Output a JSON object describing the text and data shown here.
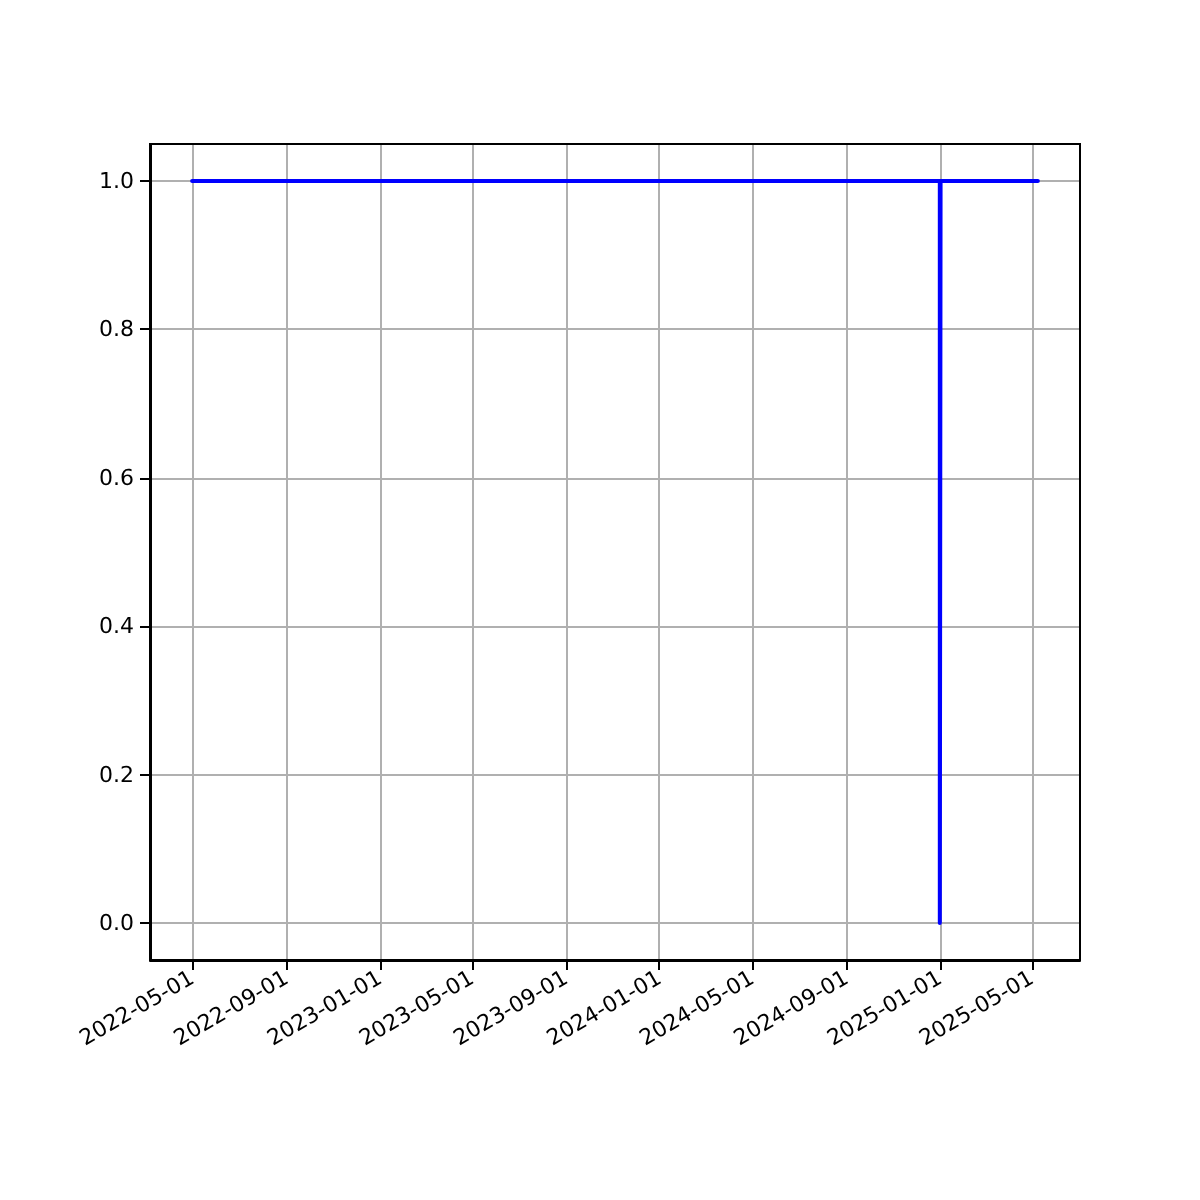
{
  "chart_data": {
    "type": "line",
    "x": [
      "2022-05-01",
      "2025-01-01",
      "2025-01-01",
      "2025-01-02",
      "2025-05-09"
    ],
    "series": [
      {
        "color": "#0000ff",
        "values": [
          1,
          1,
          0,
          1,
          1
        ]
      }
    ],
    "xlim": [
      "2022-03-07",
      "2025-07-03"
    ],
    "xticks": [
      "2022-05-01",
      "2022-09-01",
      "2023-01-01",
      "2023-05-01",
      "2023-09-01",
      "2024-01-01",
      "2024-05-01",
      "2024-09-01",
      "2025-01-01",
      "2025-05-01"
    ],
    "ylim": [
      -0.05,
      1.05
    ],
    "yticks": [
      {
        "value": 0,
        "label": "0.0"
      },
      {
        "value": 0.2,
        "label": "0.2"
      },
      {
        "value": 0.4,
        "label": "0.4"
      },
      {
        "value": 0.6,
        "label": "0.6"
      },
      {
        "value": 0.8,
        "label": "0.8"
      },
      {
        "value": 1,
        "label": "1.0"
      }
    ],
    "grid": true,
    "marker": "none",
    "line_style": "solid"
  }
}
